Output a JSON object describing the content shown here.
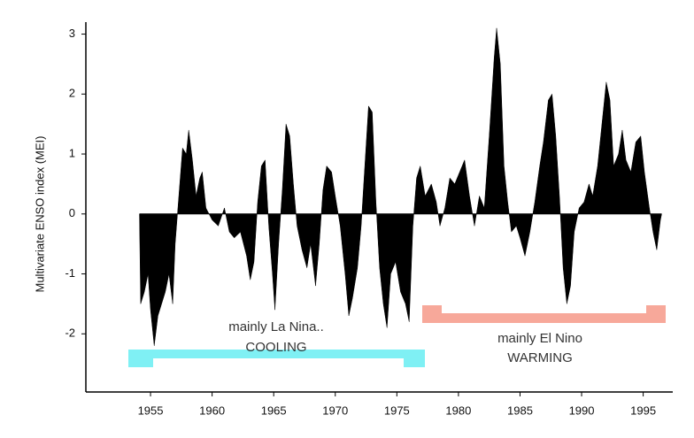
{
  "chart_data": {
    "type": "area",
    "y_label": "Multivariate ENSO index (MEI)",
    "color": "#000000",
    "annotations": [
      "mainly La Nina..",
      "COOLING",
      "mainly El Nino",
      "WARMING"
    ],
    "xlim": [
      1949.75,
      1997.4
    ],
    "ylim": [
      -2.97,
      3.2
    ],
    "xticks": [
      1955,
      1960,
      1965,
      1970,
      1975,
      1980,
      1985,
      1990,
      1995
    ],
    "yticks": [
      -2,
      -1,
      0,
      1,
      2,
      3
    ],
    "x": [
      1954.1,
      1954.2,
      1954.5,
      1954.8,
      1955.0,
      1955.3,
      1955.6,
      1955.9,
      1956.2,
      1956.5,
      1956.8,
      1957.0,
      1957.3,
      1957.6,
      1957.9,
      1958.1,
      1958.4,
      1958.7,
      1959.0,
      1959.2,
      1959.5,
      1960.0,
      1960.5,
      1961.0,
      1961.4,
      1961.8,
      1962.3,
      1962.8,
      1963.1,
      1963.4,
      1963.7,
      1964.0,
      1964.3,
      1964.6,
      1964.9,
      1965.1,
      1965.4,
      1965.7,
      1966.0,
      1966.3,
      1966.6,
      1966.9,
      1967.3,
      1967.7,
      1968.0,
      1968.4,
      1968.7,
      1969.0,
      1969.3,
      1969.7,
      1970.0,
      1970.4,
      1970.8,
      1971.1,
      1971.4,
      1971.8,
      1972.1,
      1972.4,
      1972.7,
      1973.0,
      1973.3,
      1973.6,
      1973.9,
      1974.2,
      1974.5,
      1974.9,
      1975.3,
      1975.7,
      1976.0,
      1976.3,
      1976.6,
      1976.9,
      1977.3,
      1977.8,
      1978.2,
      1978.5,
      1978.9,
      1979.3,
      1979.7,
      1980.1,
      1980.5,
      1980.9,
      1981.3,
      1981.7,
      1982.1,
      1982.5,
      1982.9,
      1983.1,
      1983.4,
      1983.7,
      1984.0,
      1984.3,
      1984.7,
      1985.0,
      1985.4,
      1985.8,
      1986.2,
      1986.6,
      1986.9,
      1987.3,
      1987.6,
      1987.9,
      1988.2,
      1988.5,
      1988.8,
      1989.1,
      1989.4,
      1989.8,
      1990.2,
      1990.6,
      1990.9,
      1991.3,
      1991.7,
      1992.0,
      1992.3,
      1992.6,
      1993.0,
      1993.3,
      1993.6,
      1994.0,
      1994.4,
      1994.8,
      1995.1,
      1995.5,
      1995.8,
      1996.1,
      1996.4,
      1996.5
    ],
    "values": [
      0,
      -1.5,
      -1.3,
      -1.0,
      -1.6,
      -2.2,
      -1.7,
      -1.5,
      -1.3,
      -1.0,
      -1.5,
      -0.5,
      0.3,
      1.1,
      1.0,
      1.4,
      0.9,
      0.3,
      0.6,
      0.7,
      0.1,
      -0.1,
      -0.2,
      0.1,
      -0.3,
      -0.4,
      -0.3,
      -0.7,
      -1.1,
      -0.8,
      0.2,
      0.8,
      0.9,
      -0.2,
      -1.0,
      -1.6,
      -0.5,
      0.4,
      1.5,
      1.3,
      0.5,
      -0.2,
      -0.6,
      -0.9,
      -0.5,
      -1.2,
      -0.5,
      0.4,
      0.8,
      0.7,
      0.3,
      -0.2,
      -1.0,
      -1.7,
      -1.4,
      -0.9,
      -0.2,
      0.8,
      1.8,
      1.7,
      0.2,
      -0.9,
      -1.5,
      -1.9,
      -1.0,
      -0.8,
      -1.3,
      -1.5,
      -1.8,
      -0.2,
      0.6,
      0.8,
      0.3,
      0.5,
      0.2,
      -0.2,
      0.1,
      0.6,
      0.5,
      0.7,
      0.9,
      0.3,
      -0.2,
      0.3,
      0.1,
      1.3,
      2.6,
      3.1,
      2.5,
      0.8,
      0.2,
      -0.3,
      -0.2,
      -0.4,
      -0.7,
      -0.3,
      0.2,
      0.8,
      1.2,
      1.9,
      2.0,
      1.3,
      0.3,
      -0.9,
      -1.5,
      -1.2,
      -0.3,
      0.1,
      0.2,
      0.5,
      0.3,
      0.8,
      1.6,
      2.2,
      1.9,
      0.8,
      1.0,
      1.4,
      0.9,
      0.7,
      1.2,
      1.3,
      0.7,
      0.1,
      -0.3,
      -0.6,
      -0.1,
      0
    ]
  }
}
